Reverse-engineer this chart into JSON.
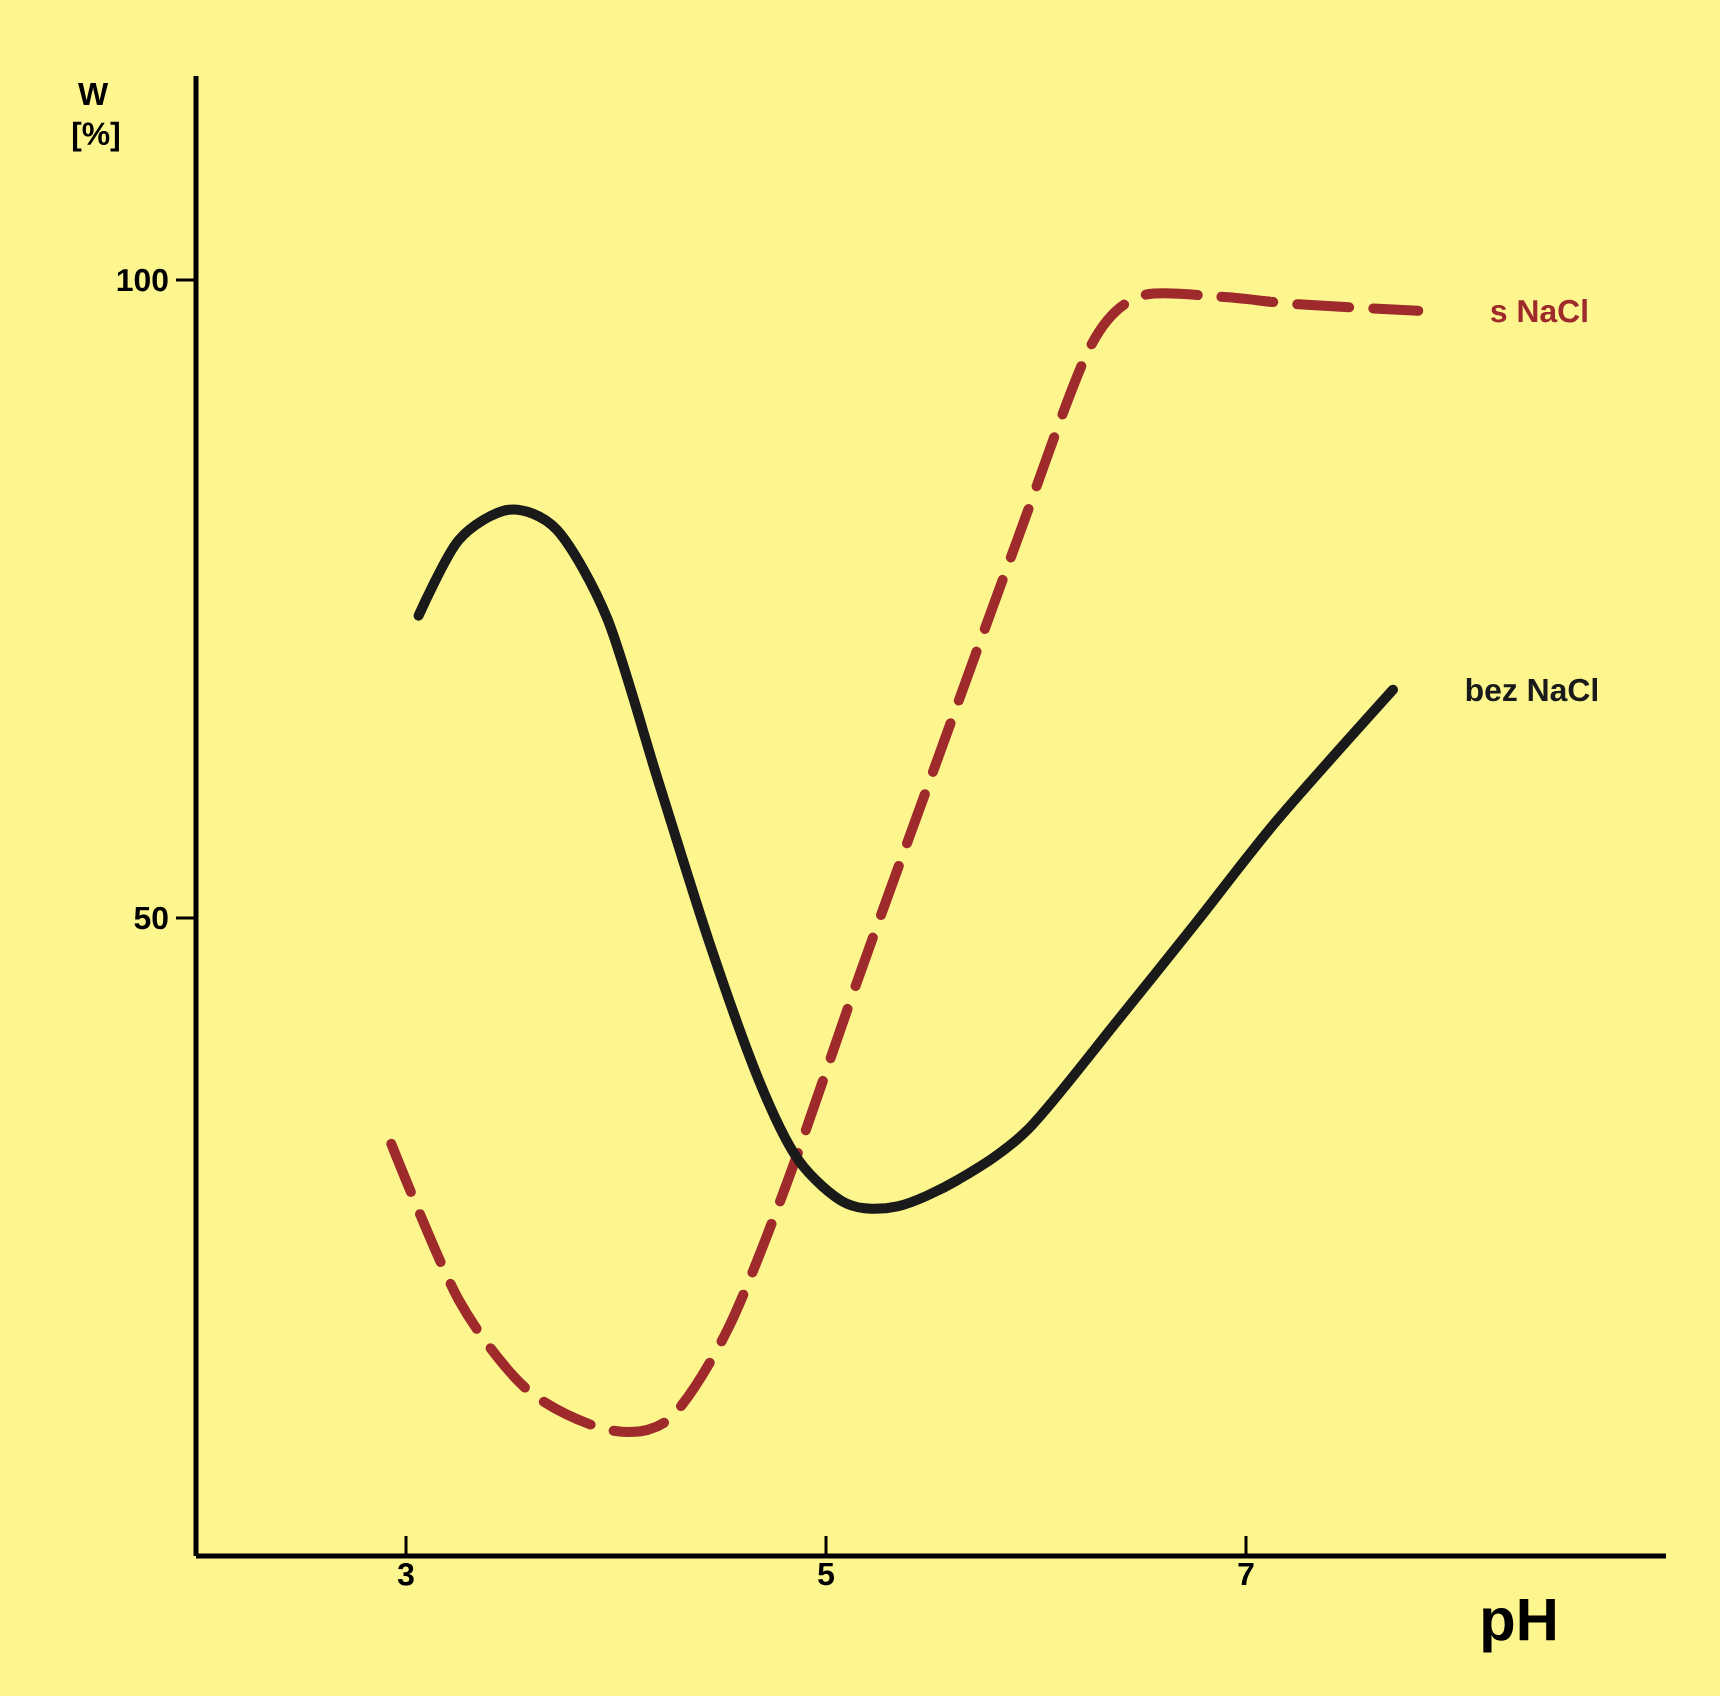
{
  "chart_data": {
    "type": "line",
    "xlabel": "pH",
    "ylabel": "W [%]",
    "xlim": [
      2,
      9
    ],
    "ylim": [
      0,
      116
    ],
    "xticks": [
      3,
      5,
      7
    ],
    "yticks": [
      50,
      100
    ],
    "series": [
      {
        "name": "s NaCl",
        "color": "#9e2a2b",
        "line_style": "dashed",
        "x": [
          2.93,
          3.25,
          3.58,
          3.96,
          4.25,
          4.53,
          4.82,
          5.15,
          5.53,
          5.91,
          6.25,
          6.49,
          6.87,
          7.25,
          7.82
        ],
        "values": [
          32.3,
          20.1,
          13.0,
          9.9,
          10.7,
          17.7,
          29.5,
          45.1,
          62.4,
          79.6,
          94.5,
          98.7,
          98.7,
          98.1,
          97.6
        ]
      },
      {
        "name": "bez NaCl",
        "color": "#1a1a1a",
        "line_style": "solid",
        "x": [
          3.06,
          3.25,
          3.49,
          3.72,
          3.96,
          4.2,
          4.44,
          4.68,
          4.87,
          5.1,
          5.34,
          5.63,
          5.96,
          6.39,
          6.77,
          7.15,
          7.7
        ],
        "values": [
          73.7,
          79.6,
          82.0,
          80.4,
          73.4,
          60.8,
          48.3,
          37.3,
          31.0,
          27.6,
          27.4,
          29.5,
          33.4,
          42.0,
          49.8,
          57.7,
          67.9
        ]
      }
    ]
  }
}
